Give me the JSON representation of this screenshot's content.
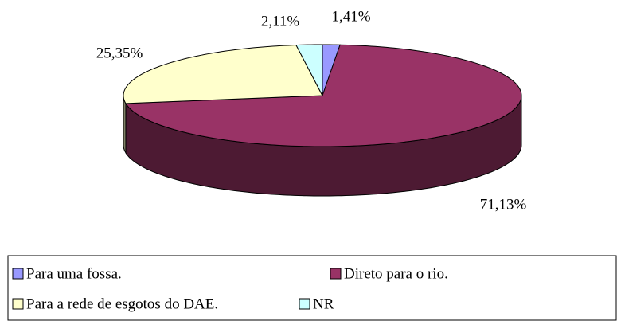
{
  "chart_data": {
    "type": "pie",
    "categories": [
      "Para uma fossa.",
      "Direto para o rio.",
      "Para a rede de esgotos do DAE.",
      "NR"
    ],
    "values": [
      1.41,
      71.13,
      25.35,
      2.11
    ],
    "value_labels": [
      "1,41%",
      "71,13%",
      "25,35%",
      "2,11%"
    ],
    "colors": [
      "#9999ff",
      "#993366",
      "#ffffcc",
      "#ccffff"
    ],
    "legend": "bottom"
  }
}
